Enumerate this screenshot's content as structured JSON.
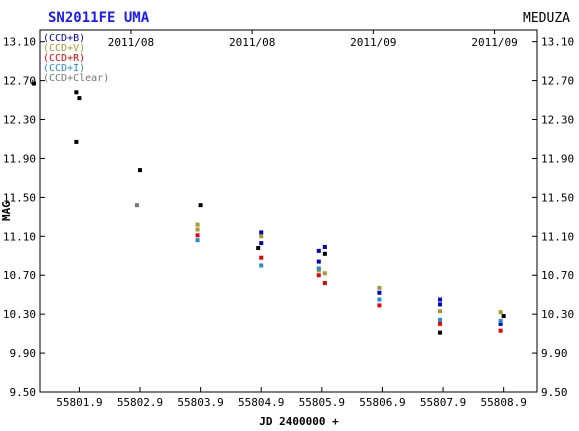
{
  "chart_data": {
    "type": "scatter",
    "title": "SN2011FE UMA",
    "source_label": "MEDUZA",
    "xlabel": "JD 2400000 +",
    "ylabel": "MAG",
    "xlim": [
      55801.25,
      55809.45
    ],
    "ylim": [
      13.22,
      9.5
    ],
    "y_inverted": true,
    "x_ticks": [
      55801.9,
      55802.9,
      55803.9,
      55804.9,
      55805.9,
      55806.9,
      55807.9,
      55808.9
    ],
    "x_tick_labels": [
      "55801.9",
      "55802.9",
      "55803.9",
      "55804.9",
      "55805.9",
      "55806.9",
      "55807.9",
      "55808.9"
    ],
    "y_ticks": [
      9.5,
      9.9,
      10.3,
      10.7,
      11.1,
      11.5,
      11.9,
      12.3,
      12.7,
      13.1
    ],
    "y_tick_labels": [
      "9.50",
      "9.90",
      "10.30",
      "10.70",
      "11.10",
      "11.50",
      "11.90",
      "12.30",
      "12.70",
      "13.10"
    ],
    "top_dates": [
      {
        "x": 55802.75,
        "label": "2011/08"
      },
      {
        "x": 55804.75,
        "label": "2011/08"
      },
      {
        "x": 55806.75,
        "label": "2011/09"
      },
      {
        "x": 55808.75,
        "label": "2011/09"
      }
    ],
    "grid": false,
    "legend_position": "top-left",
    "series": [
      {
        "name": "(CCD+B)",
        "color": "#0000cc",
        "points": [
          [
            55804.9,
            11.03
          ],
          [
            55804.9,
            11.14
          ],
          [
            55805.85,
            10.84
          ],
          [
            55805.85,
            10.95
          ],
          [
            55805.95,
            10.99
          ],
          [
            55806.85,
            10.52
          ],
          [
            55807.85,
            10.45
          ],
          [
            55807.85,
            10.4
          ],
          [
            55808.85,
            10.2
          ]
        ]
      },
      {
        "name": "(CCD+V)",
        "color": "#a89a2e",
        "points": [
          [
            55803.85,
            11.22
          ],
          [
            55803.85,
            11.17
          ],
          [
            55804.9,
            11.1
          ],
          [
            55805.85,
            10.75
          ],
          [
            55805.95,
            10.72
          ],
          [
            55806.85,
            10.57
          ],
          [
            55807.85,
            10.33
          ],
          [
            55808.85,
            10.32
          ]
        ]
      },
      {
        "name": "(CCD+R)",
        "color": "#ee0000",
        "points": [
          [
            55803.85,
            11.11
          ],
          [
            55804.9,
            10.88
          ],
          [
            55805.85,
            10.7
          ],
          [
            55805.95,
            10.62
          ],
          [
            55806.85,
            10.39
          ],
          [
            55807.85,
            10.2
          ],
          [
            55808.85,
            10.13
          ]
        ]
      },
      {
        "name": "(CCD+I)",
        "color": "#1e90d0",
        "points": [
          [
            55803.85,
            11.06
          ],
          [
            55804.9,
            10.8
          ],
          [
            55805.85,
            10.77
          ],
          [
            55806.85,
            10.45
          ],
          [
            55807.85,
            10.24
          ],
          [
            55808.85,
            10.23
          ]
        ]
      },
      {
        "name": "(CCD+Clear)",
        "color": "#777777",
        "points": [
          [
            55802.85,
            11.42
          ]
        ]
      },
      {
        "name": "",
        "color": "#000000",
        "points": [
          [
            55801.15,
            12.67
          ],
          [
            55801.85,
            12.07
          ],
          [
            55801.85,
            12.58
          ],
          [
            55801.9,
            12.52
          ],
          [
            55802.9,
            11.78
          ],
          [
            55803.9,
            11.42
          ],
          [
            55804.85,
            10.98
          ],
          [
            55805.95,
            10.92
          ],
          [
            55807.85,
            10.11
          ],
          [
            55808.9,
            10.28
          ]
        ]
      }
    ]
  }
}
